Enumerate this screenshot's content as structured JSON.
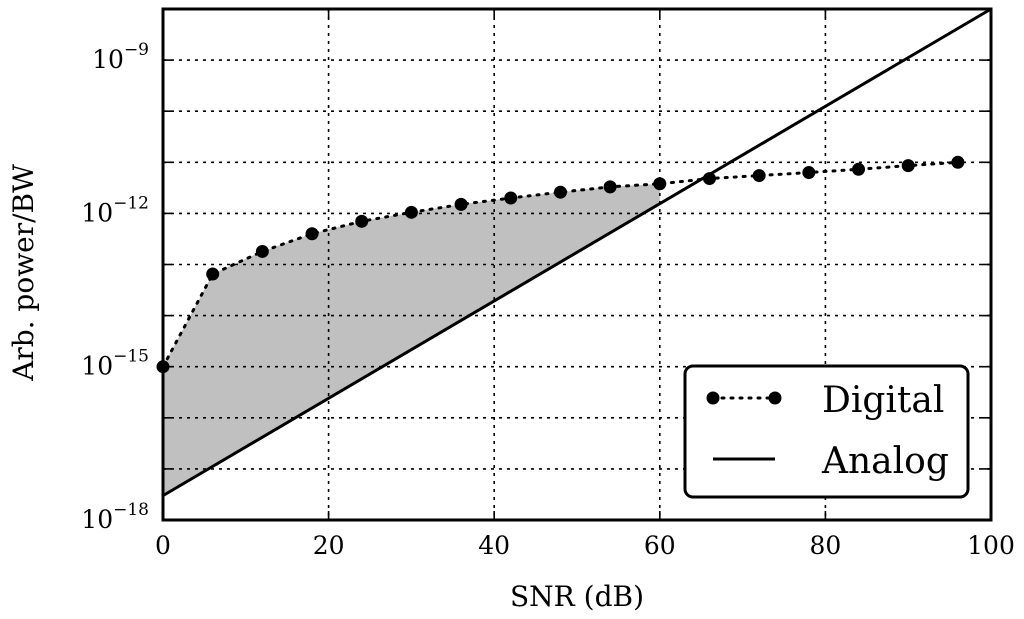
{
  "chart_data": {
    "type": "line",
    "xlabel": "SNR (dB)",
    "ylabel": "Arb. power/BW",
    "xlim": [
      0,
      100
    ],
    "ylim_log10": [
      -18,
      -8
    ],
    "y_scale": "log",
    "x_ticks": [
      0,
      20,
      40,
      60,
      80,
      100
    ],
    "x_tick_labels": [
      "0",
      "20",
      "40",
      "60",
      "80",
      "100"
    ],
    "y_major_ticks": [
      {
        "value": 1e-18,
        "base": "10",
        "exp": "−18"
      },
      {
        "value": 1e-15,
        "base": "10",
        "exp": "−15"
      },
      {
        "value": 1e-12,
        "base": "10",
        "exp": "−12"
      },
      {
        "value": 1e-09,
        "base": "10",
        "exp": "−9"
      }
    ],
    "grid": true,
    "legend_position": "bottom-right",
    "shaded_region": {
      "between": [
        "Digital",
        "Analog"
      ],
      "x_range": [
        0,
        60
      ],
      "color": "#c0c0c0"
    },
    "series": [
      {
        "name": "Digital",
        "style": "dotted-with-markers",
        "color": "#000000",
        "x": [
          0,
          6,
          12,
          18,
          24,
          30,
          36,
          42,
          48,
          54,
          60,
          66,
          72,
          78,
          84,
          90,
          96
        ],
        "y": [
          1e-15,
          6.5e-14,
          1.8e-13,
          4e-13,
          7e-13,
          1.05e-12,
          1.5e-12,
          2e-12,
          2.6e-12,
          3.3e-12,
          3.8e-12,
          4.8e-12,
          5.5e-12,
          6.3e-12,
          7.3e-12,
          8.6e-12,
          1e-11
        ]
      },
      {
        "name": "Analog",
        "style": "solid",
        "color": "#000000",
        "x": [
          0,
          100
        ],
        "y": [
          3e-18,
          1e-08
        ]
      }
    ]
  }
}
